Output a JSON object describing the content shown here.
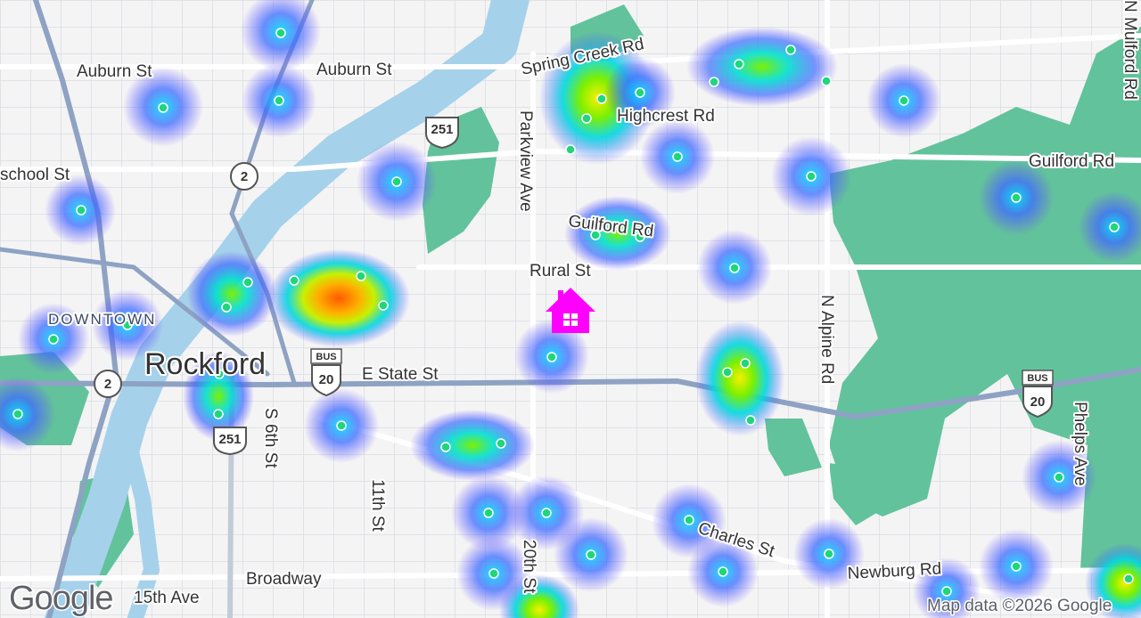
{
  "map": {
    "streets": [
      "Auburn St",
      "Auburn St",
      "school St",
      "Spring Creek Rd",
      "Highcrest Rd",
      "Parkview Ave",
      "Guilford Rd",
      "Guilford Rd",
      "Rural St",
      "E State St",
      "S 6th St",
      "11th St",
      "20th St",
      "Charles St",
      "Newburg Rd",
      "N Alpine Rd",
      "Phelps Ave",
      "N Mulford Rd",
      "Broadway",
      "15th Ave"
    ],
    "district": "DOWNTOWN",
    "city": "Rockford",
    "shields": [
      "251",
      "2",
      "2",
      "251",
      "BUS",
      "20",
      "BUS",
      "20"
    ],
    "attribution": "Map data ©2026 Google",
    "logo": "Google"
  }
}
